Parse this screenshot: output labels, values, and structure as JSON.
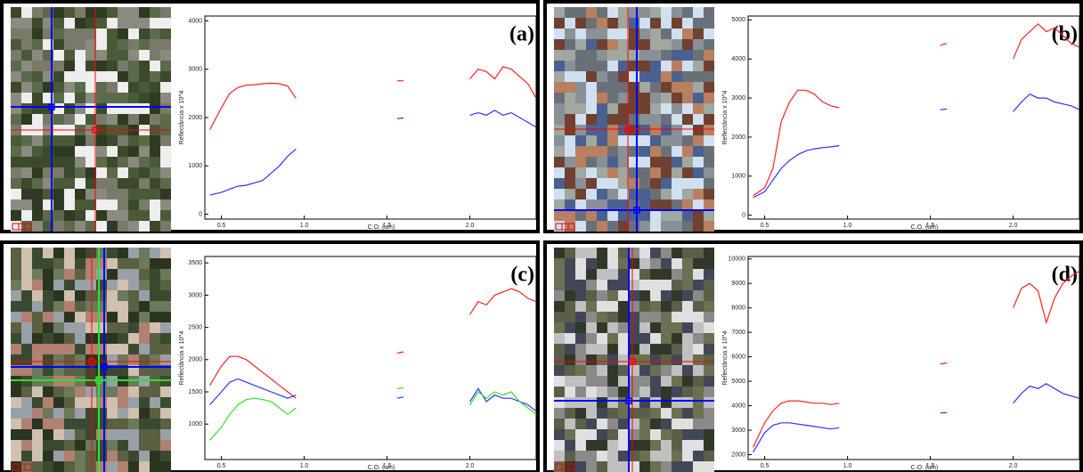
{
  "chart_data": [
    {
      "type": "line",
      "label": "(a)",
      "xlabel": "C.O. (um)",
      "ylabel": "Reflectância x 10^4",
      "x": [
        0.43,
        0.5,
        0.55,
        0.6,
        0.65,
        0.7,
        0.75,
        0.8,
        0.85,
        0.9,
        0.95,
        1.2,
        1.56,
        1.6,
        1.8,
        2.0,
        2.05,
        2.1,
        2.15,
        2.2,
        2.25,
        2.3,
        2.35,
        2.4
      ],
      "xlim": [
        0.4,
        2.4
      ],
      "xticks": [
        0.5,
        {
          "value": 1,
          "label": "1.0"
        },
        1.5,
        {
          "value": 2,
          "label": "2.0"
        }
      ],
      "ylim": [
        -100,
        4100
      ],
      "yticks": [
        0,
        1000,
        2000,
        3000,
        4000
      ],
      "series": [
        {
          "color": "#ff2020",
          "values": [
            1750,
            2200,
            2500,
            2620,
            2670,
            2680,
            2700,
            2710,
            2700,
            2650,
            2400,
            null,
            2760,
            2760,
            null,
            2800,
            3000,
            2950,
            2800,
            3050,
            3000,
            2850,
            2700,
            2400
          ]
        },
        {
          "color": "#3030ff",
          "values": [
            400,
            450,
            520,
            580,
            600,
            650,
            700,
            850,
            1000,
            1200,
            1350,
            null,
            1980,
            1990,
            null,
            2050,
            2100,
            2050,
            2150,
            2050,
            2100,
            2000,
            1900,
            1800
          ]
        }
      ]
    },
    {
      "type": "line",
      "label": "(b)",
      "xlabel": "C.O. (um)",
      "ylabel": "Reflectância x 10^4",
      "x": [
        0.43,
        0.5,
        0.55,
        0.6,
        0.65,
        0.7,
        0.75,
        0.8,
        0.85,
        0.9,
        0.95,
        1.2,
        1.56,
        1.6,
        1.8,
        2.0,
        2.05,
        2.1,
        2.15,
        2.2,
        2.25,
        2.3,
        2.35,
        2.4
      ],
      "xlim": [
        0.4,
        2.4
      ],
      "xticks": [
        0.5,
        {
          "value": 1,
          "label": "1.0"
        },
        1.5,
        {
          "value": 2,
          "label": "2.0"
        }
      ],
      "ylim": [
        -100,
        5100
      ],
      "yticks": [
        0,
        1000,
        2000,
        3000,
        4000,
        5000
      ],
      "series": [
        {
          "color": "#ff2020",
          "values": [
            500,
            700,
            1200,
            2400,
            2900,
            3200,
            3200,
            3100,
            2900,
            2800,
            2750,
            null,
            4350,
            4400,
            null,
            4000,
            4500,
            4700,
            4900,
            4700,
            4800,
            4600,
            4400,
            4300
          ]
        },
        {
          "color": "#3030ff",
          "values": [
            450,
            600,
            900,
            1200,
            1400,
            1550,
            1650,
            1700,
            1730,
            1750,
            1780,
            null,
            2700,
            2720,
            null,
            2650,
            2900,
            3100,
            3000,
            3000,
            2900,
            2850,
            2800,
            2700
          ]
        }
      ]
    },
    {
      "type": "line",
      "label": "(c)",
      "xlabel": "C.O. (um)",
      "ylabel": "Reflectância x 10^4",
      "x": [
        0.43,
        0.5,
        0.55,
        0.6,
        0.65,
        0.7,
        0.75,
        0.8,
        0.85,
        0.9,
        0.95,
        1.2,
        1.56,
        1.6,
        1.8,
        2.0,
        2.05,
        2.1,
        2.15,
        2.2,
        2.25,
        2.3,
        2.35,
        2.4
      ],
      "xlim": [
        0.4,
        2.4
      ],
      "xticks": [
        0.5,
        {
          "value": 1,
          "label": "1.0"
        },
        1.5,
        {
          "value": 2,
          "label": "2.0"
        }
      ],
      "ylim": [
        450,
        3600
      ],
      "yticks": [
        1000,
        1500,
        2000,
        2500,
        3000,
        3500
      ],
      "series": [
        {
          "color": "#ff2020",
          "values": [
            1600,
            1900,
            2050,
            2050,
            2000,
            1900,
            1800,
            1700,
            1600,
            1500,
            1400,
            null,
            2100,
            2120,
            null,
            2700,
            2900,
            2850,
            3000,
            3050,
            3100,
            3050,
            2950,
            2900
          ]
        },
        {
          "color": "#3030ff",
          "values": [
            1300,
            1500,
            1650,
            1700,
            1650,
            1600,
            1550,
            1500,
            1450,
            1400,
            1450,
            null,
            1400,
            1420,
            null,
            1350,
            1550,
            1350,
            1450,
            1400,
            1400,
            1350,
            1300,
            1200
          ]
        },
        {
          "color": "#30e030",
          "values": [
            750,
            950,
            1150,
            1300,
            1380,
            1400,
            1380,
            1350,
            1250,
            1150,
            1250,
            null,
            1550,
            1560,
            null,
            1300,
            1500,
            1400,
            1500,
            1450,
            1500,
            1350,
            1250,
            1150
          ]
        }
      ]
    },
    {
      "type": "line",
      "label": "(d)",
      "xlabel": "C.O. (um)",
      "ylabel": "Reflectância x 10^4",
      "x": [
        0.43,
        0.5,
        0.55,
        0.6,
        0.65,
        0.7,
        0.75,
        0.8,
        0.85,
        0.9,
        0.95,
        1.2,
        1.56,
        1.6,
        1.8,
        2.0,
        2.05,
        2.1,
        2.15,
        2.2,
        2.25,
        2.3,
        2.35,
        2.4
      ],
      "xlim": [
        0.4,
        2.4
      ],
      "xticks": [
        0.5,
        {
          "value": 1,
          "label": "1.0"
        },
        1.5,
        {
          "value": 2,
          "label": "2.0"
        }
      ],
      "ylim": [
        1800,
        10100
      ],
      "yticks": [
        2000,
        3000,
        4000,
        5000,
        6000,
        7000,
        8000,
        9000,
        10000
      ],
      "series": [
        {
          "color": "#ff2020",
          "values": [
            2300,
            3300,
            3800,
            4100,
            4200,
            4200,
            4150,
            4100,
            4100,
            4050,
            4100,
            null,
            5700,
            5750,
            null,
            8000,
            8800,
            9000,
            8700,
            7400,
            8400,
            9000,
            9300,
            9500
          ]
        },
        {
          "color": "#3030ff",
          "values": [
            2100,
            2900,
            3200,
            3300,
            3300,
            3250,
            3200,
            3150,
            3100,
            3050,
            3100,
            null,
            3700,
            3720,
            null,
            4100,
            4500,
            4800,
            4700,
            4900,
            4700,
            4500,
            4400,
            4300
          ]
        }
      ]
    }
  ]
}
